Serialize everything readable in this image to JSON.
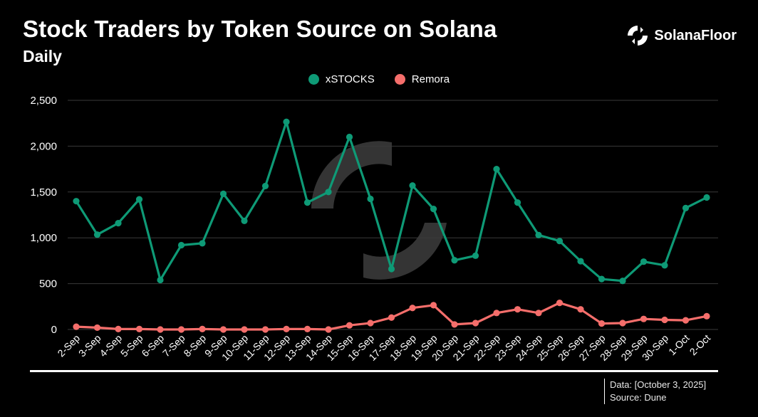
{
  "header": {
    "title": "Stock Traders by Token Source on Solana",
    "subtitle": "Daily",
    "brand": "SolanaFloor"
  },
  "footer": {
    "data_line": "Data: [October 3, 2025]",
    "source_line": "Source: Dune"
  },
  "colors": {
    "background": "#000000",
    "grid": "#3a3a3a",
    "xstocks": "#0e9a76",
    "remora": "#f56e6b"
  },
  "chart_data": {
    "type": "line",
    "title": "Stock Traders by Token Source on Solana",
    "subtitle": "Daily",
    "categories": [
      "2-Sep",
      "3-Sep",
      "4-Sep",
      "5-Sep",
      "6-Sep",
      "7-Sep",
      "8-Sep",
      "9-Sep",
      "10-Sep",
      "11-Sep",
      "12-Sep",
      "13-Sep",
      "14-Sep",
      "15-Sep",
      "16-Sep",
      "17-Sep",
      "18-Sep",
      "19-Sep",
      "20-Sep",
      "21-Sep",
      "22-Sep",
      "23-Sep",
      "24-Sep",
      "25-Sep",
      "26-Sep",
      "27-Sep",
      "28-Sep",
      "29-Sep",
      "30-Sep",
      "1-Oct",
      "2-Oct"
    ],
    "series": [
      {
        "name": "xSTOCKS",
        "color": "#0e9a76",
        "values": [
          1400,
          1035,
          1160,
          1420,
          540,
          920,
          940,
          1480,
          1185,
          1565,
          2265,
          1385,
          1500,
          2100,
          1425,
          660,
          1570,
          1315,
          755,
          805,
          1750,
          1385,
          1030,
          965,
          745,
          550,
          530,
          740,
          700,
          1325,
          1440
        ]
      },
      {
        "name": "Remora",
        "color": "#f56e6b",
        "values": [
          30,
          20,
          5,
          5,
          0,
          0,
          5,
          0,
          0,
          0,
          5,
          5,
          0,
          45,
          70,
          130,
          235,
          265,
          55,
          70,
          180,
          220,
          180,
          290,
          220,
          65,
          70,
          115,
          105,
          100,
          145
        ]
      }
    ],
    "yticks": [
      0,
      500,
      1000,
      1500,
      2000,
      2500
    ],
    "ytick_labels": [
      "0",
      "500",
      "1,000",
      "1,500",
      "2,000",
      "2,500"
    ],
    "ylim": [
      0,
      2500
    ],
    "grid": true,
    "legend_position": "top-center",
    "xlabel": "",
    "ylabel": ""
  }
}
